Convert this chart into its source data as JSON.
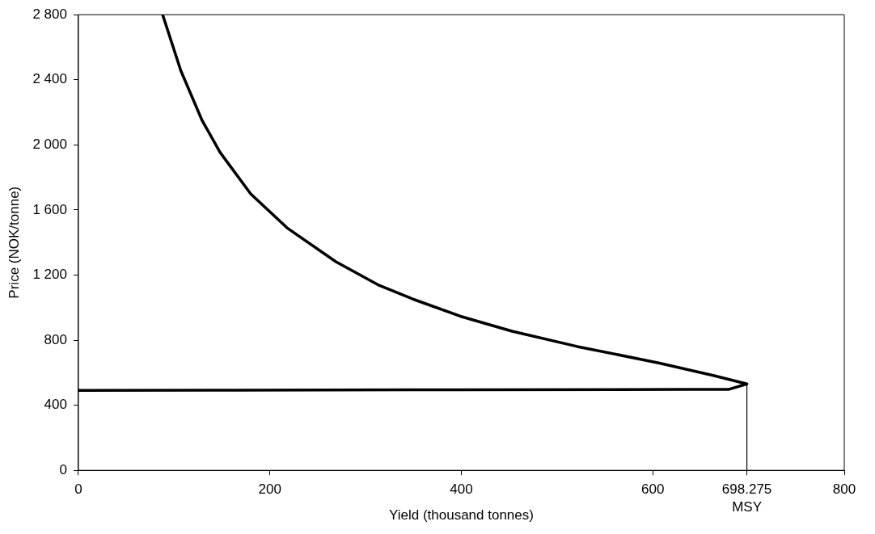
{
  "chart_data": {
    "type": "line",
    "xlabel": "Yield (thousand tonnes)",
    "ylabel": "Price (NOK/tonne)",
    "xlim": [
      0,
      800
    ],
    "xticks": [
      0,
      200,
      400,
      600,
      698.275,
      800
    ],
    "ylim": [
      0,
      2800
    ],
    "yticks": [
      0,
      {
        "value": 400,
        "label": "400"
      },
      {
        "value": 800,
        "label": "800"
      },
      {
        "value": 1200,
        "label": "1 200"
      },
      {
        "value": 1600,
        "label": "1 600"
      },
      {
        "value": 2000,
        "label": "2 000"
      },
      {
        "value": 2400,
        "label": "2 400"
      },
      {
        "value": 2800,
        "label": "2 800"
      }
    ],
    "series": [
      {
        "color": "#000000",
        "x": [
          88,
          107,
          129,
          148,
          180,
          218,
          269,
          313,
          350,
          399,
          453,
          521,
          607,
          664,
          698.3,
          679,
          636,
          400,
          160,
          0
        ],
        "values": [
          2800,
          2456,
          2153,
          1954,
          1699,
          1490,
          1282,
          1140,
          1051,
          947,
          855,
          761,
          659,
          582,
          531,
          497,
          497,
          495,
          493,
          491
        ]
      }
    ],
    "ref_lines": [
      {
        "axis": "x",
        "value": 698.275,
        "label": "MSY",
        "color": "#000000"
      }
    ],
    "grid": false,
    "legend": false,
    "marker": "none",
    "line_style": "solid"
  }
}
